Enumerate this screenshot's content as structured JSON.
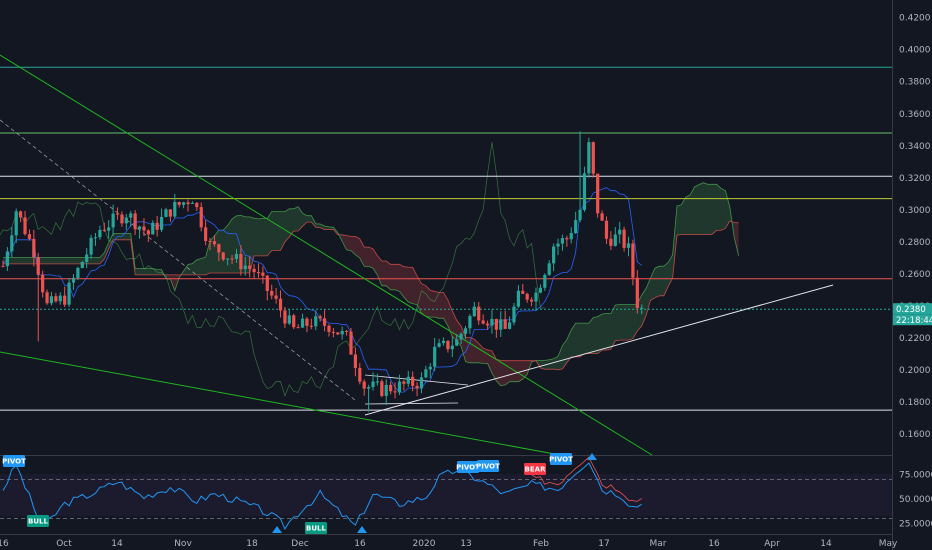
{
  "chart_data": {
    "type": "candlestick",
    "price_axis": {
      "ticks": [
        "0.1600",
        "0.1800",
        "0.2000",
        "0.2200",
        "0.2400",
        "0.2600",
        "0.2800",
        "0.3000",
        "0.3200",
        "0.3400",
        "0.3600",
        "0.3800",
        "0.4000",
        "0.4200"
      ],
      "ylim": [
        0.147,
        0.431
      ],
      "current_price_label": "0.2380",
      "countdown_label": "22:18:44"
    },
    "time_axis": {
      "labels": [
        "16",
        "Oct",
        "14",
        "Nov",
        "18",
        "Dec",
        "16",
        "2020",
        "13",
        "Feb",
        "17",
        "Mar",
        "16",
        "Apr",
        "14",
        "May"
      ]
    },
    "osc_axis": {
      "ticks": [
        "75.0000",
        "50.0000",
        "25.0000"
      ],
      "ylim": [
        14,
        94
      ]
    },
    "horizontal_levels": [
      {
        "price": 0.389,
        "color": "#26a69a"
      },
      {
        "price": 0.348,
        "color": "#66bb6a"
      },
      {
        "price": 0.321,
        "color": "#e0e3eb"
      },
      {
        "price": 0.307,
        "color": "#c0ca33"
      },
      {
        "price": 0.257,
        "color": "#ef5350"
      },
      {
        "price": 0.238,
        "color": "#26a69a"
      },
      {
        "price": 0.175,
        "color": "#e0e3eb"
      }
    ],
    "signal_tags": [
      {
        "text": "PIVOT",
        "color": "#2196f3"
      },
      {
        "text": "BULL",
        "color": "#089981"
      },
      {
        "text": "BULL",
        "color": "#089981"
      },
      {
        "text": "PIVOT",
        "color": "#2196f3"
      },
      {
        "text": "PIVOT",
        "color": "#2196f3"
      },
      {
        "text": "BEAR",
        "color": "#f23645"
      },
      {
        "text": "PIVOT",
        "color": "#2196f3"
      }
    ],
    "colors": {
      "background": "#131722",
      "up": "#26a69a",
      "down": "#ef5350",
      "oscillator": "#2196f3",
      "trendline_green": "#1fb51f",
      "trendline_white": "#e0e3eb"
    }
  }
}
